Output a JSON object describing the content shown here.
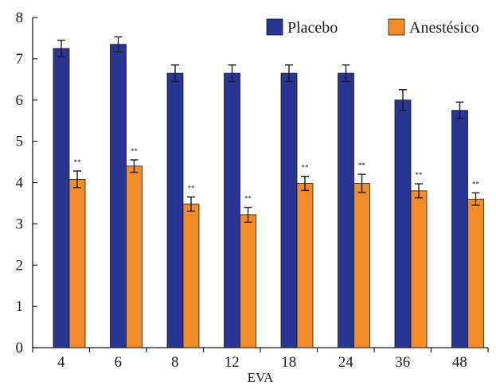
{
  "chart_data": {
    "type": "bar",
    "xlabel": "EVA",
    "ylabel": "",
    "title": "",
    "categories": [
      "4",
      "6",
      "8",
      "12",
      "18",
      "24",
      "36",
      "48"
    ],
    "ylim": [
      0,
      8
    ],
    "yticks": [
      0,
      1,
      2,
      3,
      4,
      5,
      6,
      7,
      8
    ],
    "grid": false,
    "legend_position": "top-right",
    "series": [
      {
        "name": "Placebo",
        "color": "#283593",
        "values": [
          7.25,
          7.35,
          6.65,
          6.65,
          6.65,
          6.65,
          6.0,
          5.75
        ],
        "errors": [
          0.2,
          0.18,
          0.2,
          0.2,
          0.2,
          0.2,
          0.25,
          0.2
        ]
      },
      {
        "name": "Anestésico",
        "color": "#F28C28",
        "values": [
          4.08,
          4.4,
          3.48,
          3.22,
          3.98,
          3.98,
          3.8,
          3.6
        ],
        "errors": [
          0.2,
          0.15,
          0.17,
          0.18,
          0.17,
          0.22,
          0.17,
          0.15
        ],
        "annotations": [
          "**",
          "**",
          "**",
          "**",
          "**",
          "**",
          "**",
          "**"
        ]
      }
    ]
  }
}
